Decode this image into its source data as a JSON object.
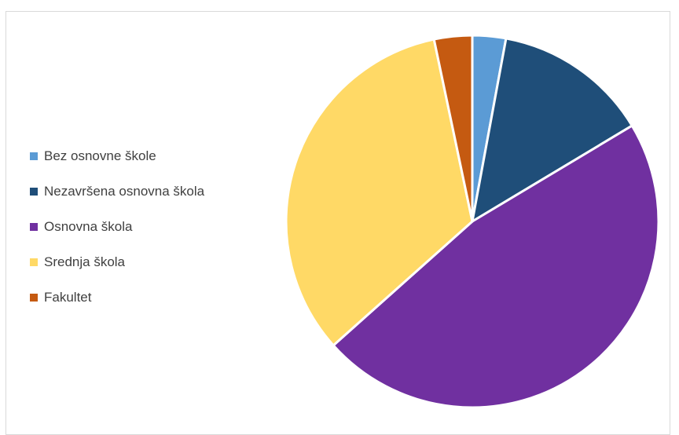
{
  "chart_data": {
    "type": "pie",
    "title": "",
    "legend_position": "left",
    "start_angle_deg": 0,
    "direction": "clockwise",
    "slices": [
      {
        "label": "Bez osnovne škole",
        "value": 2.9,
        "color": "#5B9BD5"
      },
      {
        "label": "Nezavršena osnovna škola",
        "value": 13.5,
        "color": "#1F4E79"
      },
      {
        "label": "Osnovna škola",
        "value": 47.0,
        "color": "#7030A0"
      },
      {
        "label": "Srednja škola",
        "value": 33.3,
        "color": "#FFD966"
      },
      {
        "label": "Fakultet",
        "value": 3.3,
        "color": "#C55A11"
      }
    ]
  }
}
